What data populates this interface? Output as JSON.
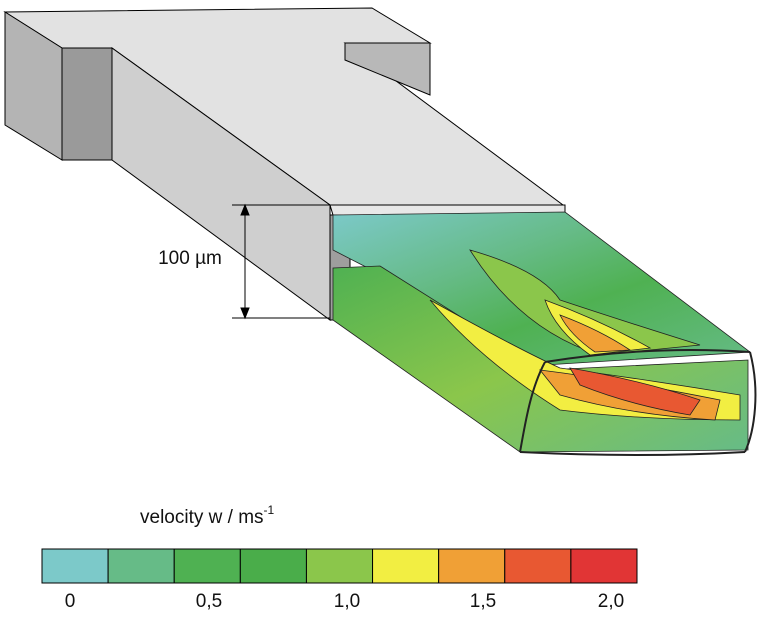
{
  "figure": {
    "dimension_label": "100 µm",
    "legend": {
      "title": "velocity w / ms",
      "title_superscript": "-1",
      "colors": [
        "#7cc9c9",
        "#66bb87",
        "#4fb152",
        "#4aad4a",
        "#8bc64b",
        "#f2ee42",
        "#f0a036",
        "#e85832",
        "#e13535"
      ],
      "tick_labels": [
        "0",
        "0,5",
        "1,0",
        "1,5",
        "2,0"
      ]
    }
  }
}
